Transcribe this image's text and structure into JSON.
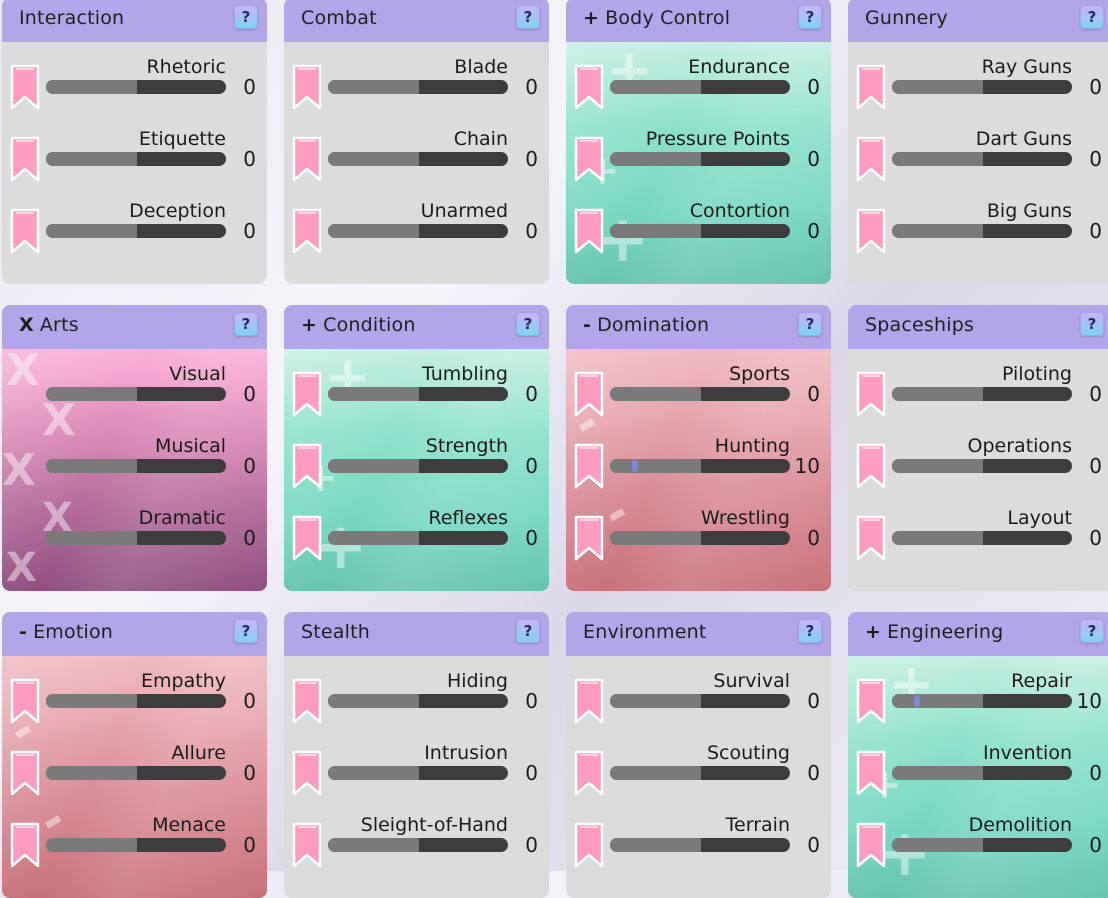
{
  "cards": [
    {
      "title": "Interaction",
      "mark": "",
      "theme": "gray",
      "skills": [
        {
          "name": "Rhetoric",
          "value": "0"
        },
        {
          "name": "Etiquette",
          "value": "0"
        },
        {
          "name": "Deception",
          "value": "0"
        }
      ]
    },
    {
      "title": "Combat",
      "mark": "",
      "theme": "gray",
      "skills": [
        {
          "name": "Blade",
          "value": "0"
        },
        {
          "name": "Chain",
          "value": "0"
        },
        {
          "name": "Unarmed",
          "value": "0"
        }
      ]
    },
    {
      "title": "Body Control",
      "mark": "+",
      "theme": "cyan",
      "skills": [
        {
          "name": "Endurance",
          "value": "0"
        },
        {
          "name": "Pressure Points",
          "value": "0"
        },
        {
          "name": "Contortion",
          "value": "0"
        }
      ]
    },
    {
      "title": "Gunnery",
      "mark": "",
      "theme": "gray",
      "skills": [
        {
          "name": "Ray Guns",
          "value": "0"
        },
        {
          "name": "Dart Guns",
          "value": "0"
        },
        {
          "name": "Big Guns",
          "value": "0"
        }
      ]
    },
    {
      "title": "Arts",
      "mark": "X",
      "theme": "pink",
      "skills": [
        {
          "name": "Visual",
          "value": "0"
        },
        {
          "name": "Musical",
          "value": "0"
        },
        {
          "name": "Dramatic",
          "value": "0"
        }
      ]
    },
    {
      "title": "Condition",
      "mark": "+",
      "theme": "cyan",
      "skills": [
        {
          "name": "Tumbling",
          "value": "0"
        },
        {
          "name": "Strength",
          "value": "0"
        },
        {
          "name": "Reflexes",
          "value": "0"
        }
      ]
    },
    {
      "title": "Domination",
      "mark": "-",
      "theme": "rose",
      "skills": [
        {
          "name": "Sports",
          "value": "0"
        },
        {
          "name": "Hunting",
          "value": "10"
        },
        {
          "name": "Wrestling",
          "value": "0"
        }
      ]
    },
    {
      "title": "Spaceships",
      "mark": "",
      "theme": "gray",
      "skills": [
        {
          "name": "Piloting",
          "value": "0"
        },
        {
          "name": "Operations",
          "value": "0"
        },
        {
          "name": "Layout",
          "value": "0"
        }
      ]
    },
    {
      "title": "Emotion",
      "mark": "-",
      "theme": "rose",
      "skills": [
        {
          "name": "Empathy",
          "value": "0"
        },
        {
          "name": "Allure",
          "value": "0"
        },
        {
          "name": "Menace",
          "value": "0"
        }
      ]
    },
    {
      "title": "Stealth",
      "mark": "",
      "theme": "gray",
      "skills": [
        {
          "name": "Hiding",
          "value": "0"
        },
        {
          "name": "Intrusion",
          "value": "0"
        },
        {
          "name": "Sleight-of-Hand",
          "value": "0"
        }
      ]
    },
    {
      "title": "Environment",
      "mark": "",
      "theme": "gray",
      "skills": [
        {
          "name": "Survival",
          "value": "0"
        },
        {
          "name": "Scouting",
          "value": "0"
        },
        {
          "name": "Terrain",
          "value": "0"
        }
      ]
    },
    {
      "title": "Engineering",
      "mark": "+",
      "theme": "cyan",
      "skills": [
        {
          "name": "Repair",
          "value": "10"
        },
        {
          "name": "Invention",
          "value": "0"
        },
        {
          "name": "Demolition",
          "value": "0"
        }
      ]
    }
  ],
  "help_label": "?",
  "max_value": 100,
  "colors": {
    "header": "#b3a6e8",
    "bookmark": "#ff9cc0",
    "bar_track": "#3d3d3d",
    "bar_fill": "#7a7a7a",
    "knob": "#7a8ad8"
  },
  "icons": {
    "help": "question-mark-icon",
    "bookmark": "bookmark-icon"
  }
}
